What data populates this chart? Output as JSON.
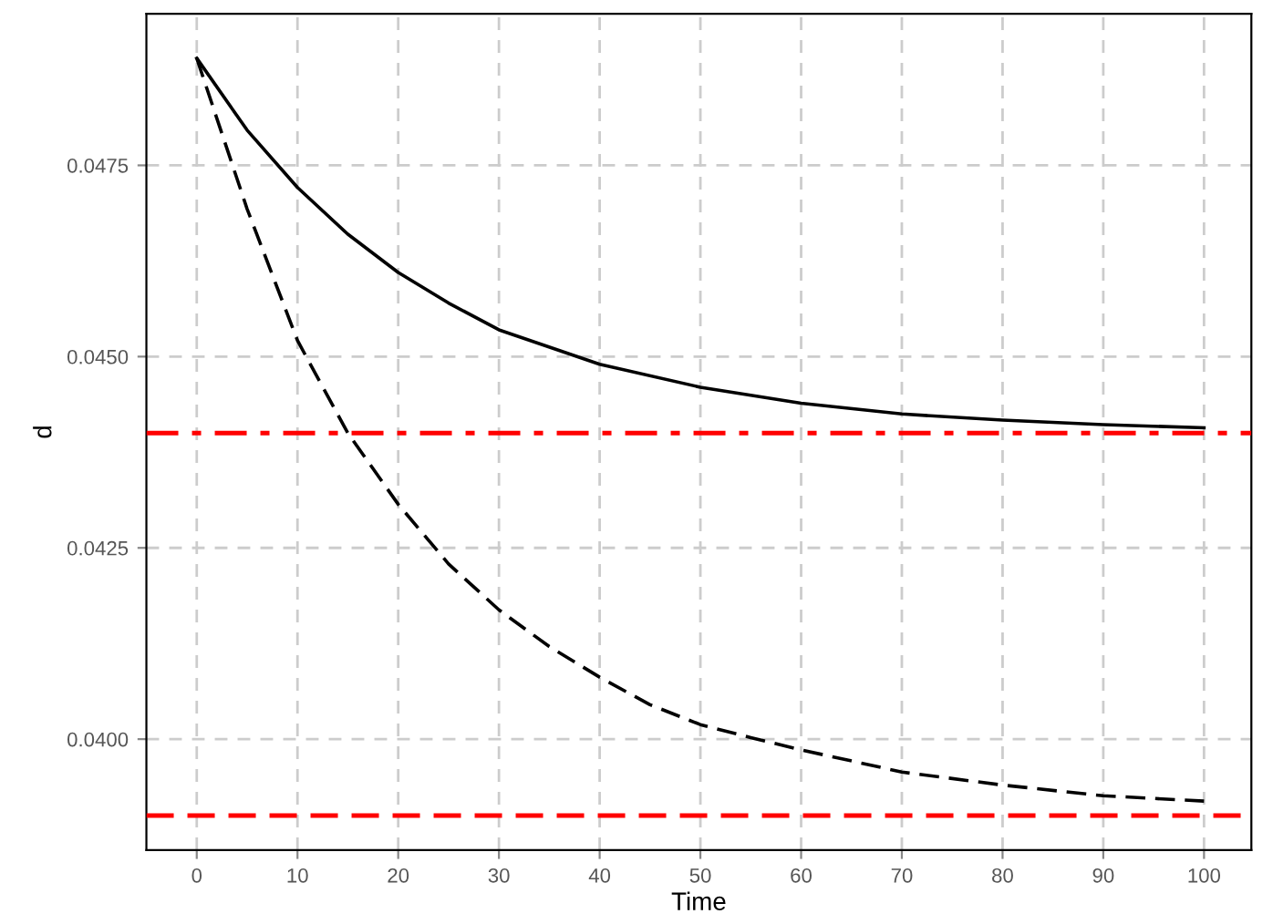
{
  "chart_data": {
    "type": "line",
    "xlabel": "Time",
    "ylabel": "d",
    "series": [
      {
        "color": "#000000",
        "line_style": "solid",
        "x": [
          0,
          5,
          10,
          15,
          20,
          25,
          30,
          40,
          50,
          60,
          70,
          80,
          90,
          100
        ],
        "values": [
          0.0489,
          0.04796,
          0.04721,
          0.0466,
          0.0461,
          0.0457,
          0.04535,
          0.0449,
          0.0446,
          0.04439,
          0.04425,
          0.04417,
          0.04411,
          0.04407
        ]
      },
      {
        "color": "#000000",
        "line_style": "dashed",
        "x": [
          0,
          5,
          10,
          15,
          20,
          25,
          30,
          35,
          40,
          45,
          50,
          55,
          60,
          70,
          80,
          90,
          100
        ],
        "values": [
          0.0489,
          0.04693,
          0.04521,
          0.044,
          0.04307,
          0.04229,
          0.04169,
          0.04121,
          0.04081,
          0.04045,
          0.04019,
          0.04002,
          0.03986,
          0.03957,
          0.0394,
          0.03926,
          0.03919
        ]
      }
    ],
    "xlim": [
      -5,
      104.7
    ],
    "ylim": [
      0.03855,
      0.04948
    ],
    "xticks": [
      0,
      10,
      20,
      30,
      40,
      50,
      60,
      70,
      80,
      90,
      100
    ],
    "yticks": [
      {
        "value": 0.04,
        "label": "0.0400"
      },
      {
        "value": 0.0425,
        "label": "0.0425"
      },
      {
        "value": 0.045,
        "label": "0.0450"
      },
      {
        "value": 0.0475,
        "label": "0.0475"
      }
    ],
    "grid": true,
    "ref_lines": [
      {
        "axis": "y",
        "value": 0.044,
        "color": "#ff0000",
        "line_style": "dashdot"
      },
      {
        "axis": "y",
        "value": 0.039,
        "color": "#ff0000",
        "line_style": "dashed"
      }
    ]
  }
}
